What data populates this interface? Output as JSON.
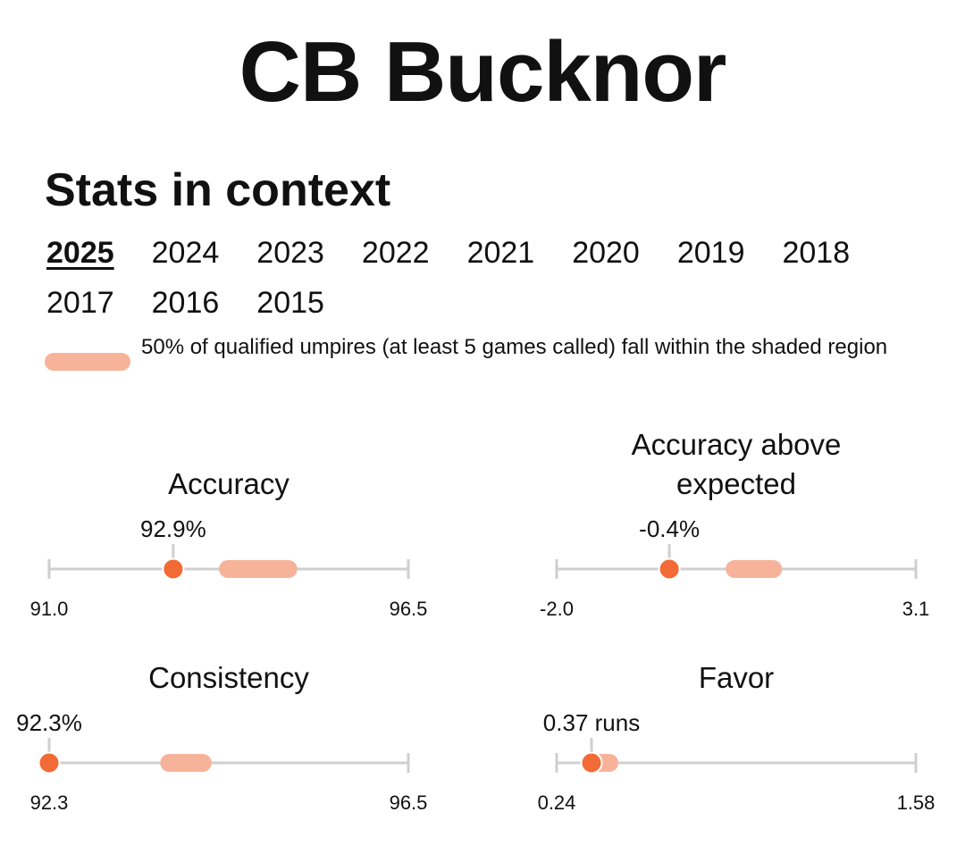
{
  "title": "CB Bucknor",
  "section_title": "Stats in context",
  "years": [
    "2025",
    "2024",
    "2023",
    "2022",
    "2021",
    "2020",
    "2019",
    "2018",
    "2017",
    "2016",
    "2015"
  ],
  "selected_year": "2025",
  "legend": {
    "text": "50% of qualified umpires (at least 5 games called) fall within the shaded region"
  },
  "colors": {
    "marker": "#f26a35",
    "band": "#f7b39a",
    "axis": "#cfcfcf"
  },
  "stats": [
    {
      "title": "Accuracy",
      "value": 92.9,
      "value_label": "92.9%",
      "min": 91.0,
      "max": 96.5,
      "min_label": "91.0",
      "max_label": "96.5",
      "band": [
        93.6,
        94.8
      ]
    },
    {
      "title": "Accuracy above expected",
      "value": -0.4,
      "value_label": "-0.4%",
      "min": -2.0,
      "max": 3.1,
      "min_label": "-2.0",
      "max_label": "3.1",
      "band": [
        0.4,
        1.2
      ]
    },
    {
      "title": "Consistency",
      "value": 92.3,
      "value_label": "92.3%",
      "min": 92.3,
      "max": 96.5,
      "min_label": "92.3",
      "max_label": "96.5",
      "band": [
        93.6,
        94.2
      ]
    },
    {
      "title": "Favor",
      "value": 0.37,
      "value_label": "0.37 runs",
      "min": 0.24,
      "max": 1.58,
      "min_label": "0.24",
      "max_label": "1.58",
      "band": [
        0.37,
        0.47
      ]
    }
  ]
}
